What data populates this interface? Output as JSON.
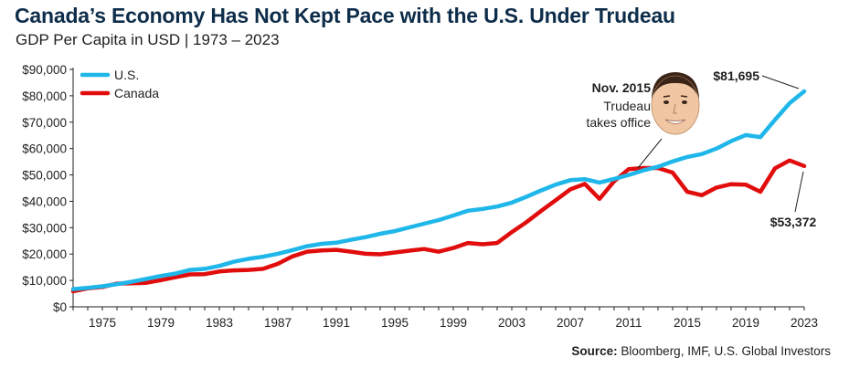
{
  "title": "Canada’s Economy Has Not Kept Pace with the U.S. Under Trudeau",
  "subtitle": "GDP Per Capita in USD | 1973 – 2023",
  "source_label": "Source:",
  "source_text": "Bloomberg, IMF, U.S. Global Investors",
  "colors": {
    "us": "#1fb7ea",
    "canada": "#e10d0d",
    "title": "#0d2d4a"
  },
  "annotations": {
    "event_title": "Nov. 2015",
    "event_line1": "Trudeau",
    "event_line2": "takes office",
    "event_icon": "trudeau-portrait-icon",
    "us_last_value": "$81,695",
    "canada_last_value": "$53,372"
  },
  "chart_data": {
    "type": "line",
    "title": "Canada’s Economy Has Not Kept Pace with the U.S. Under Trudeau",
    "subtitle": "GDP Per Capita in USD | 1973 – 2023",
    "xlabel": "",
    "ylabel": "",
    "xlim": [
      1973,
      2023
    ],
    "ylim": [
      0,
      90000
    ],
    "grid": false,
    "legend_position": "top-left",
    "x_ticks": [
      "1975",
      "1979",
      "1983",
      "1987",
      "1991",
      "1995",
      "1999",
      "2003",
      "2007",
      "2011",
      "2015",
      "2019",
      "2023"
    ],
    "y_ticks": [
      "$0",
      "$10,000",
      "$20,000",
      "$30,000",
      "$40,000",
      "$50,000",
      "$60,000",
      "$70,000",
      "$80,000",
      "$90,000"
    ],
    "x": [
      1973,
      1974,
      1975,
      1976,
      1977,
      1978,
      1979,
      1980,
      1981,
      1982,
      1983,
      1984,
      1985,
      1986,
      1987,
      1988,
      1989,
      1990,
      1991,
      1992,
      1993,
      1994,
      1995,
      1996,
      1997,
      1998,
      1999,
      2000,
      2001,
      2002,
      2003,
      2004,
      2005,
      2006,
      2007,
      2008,
      2009,
      2010,
      2011,
      2012,
      2013,
      2014,
      2015,
      2016,
      2017,
      2018,
      2019,
      2020,
      2021,
      2022,
      2023
    ],
    "series": [
      {
        "name": "U.S.",
        "values": [
          6700,
          7200,
          7800,
          8600,
          9500,
          10600,
          11700,
          12600,
          14000,
          14400,
          15500,
          17100,
          18200,
          19000,
          20100,
          21500,
          23000,
          23900,
          24300,
          25400,
          26400,
          27700,
          28700,
          30100,
          31500,
          32900,
          34600,
          36400,
          37100,
          38000,
          39500,
          41700,
          44100,
          46300,
          48000,
          48400,
          47100,
          48500,
          50000,
          51700,
          53100,
          55100,
          56800,
          57900,
          60000,
          62800,
          65100,
          64300,
          70900,
          77200,
          81695
        ]
      },
      {
        "name": "Canada",
        "values": [
          5900,
          7000,
          7500,
          8800,
          8900,
          9100,
          10100,
          11200,
          12300,
          12400,
          13400,
          13800,
          14000,
          14400,
          16300,
          19100,
          20900,
          21400,
          21600,
          20900,
          20100,
          19900,
          20600,
          21300,
          21900,
          20900,
          22300,
          24200,
          23700,
          24200,
          28300,
          32100,
          36300,
          40400,
          44500,
          46600,
          40900,
          47600,
          52200,
          52600,
          52600,
          50900,
          43600,
          42300,
          45200,
          46500,
          46300,
          43600,
          52500,
          55500,
          53372
        ]
      }
    ]
  }
}
